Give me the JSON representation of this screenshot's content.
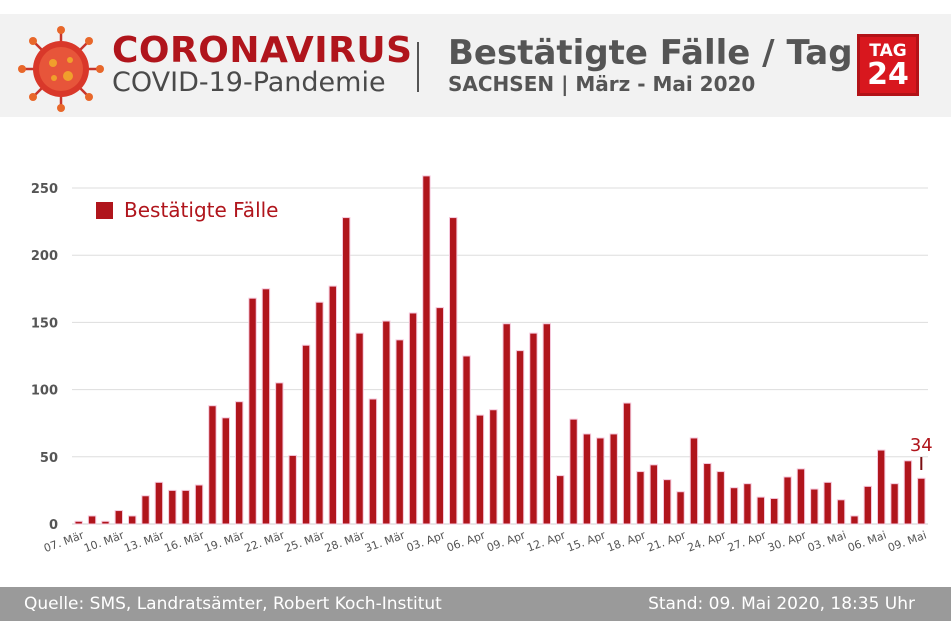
{
  "header": {
    "title_main": "CORONAVIRUS",
    "title_sub": "COVID-19-Pandemie",
    "chart_title": "Bestätigte Fälle / Tag",
    "chart_subtitle": "SACHSEN | März - Mai 2020",
    "logo_top": "TAG",
    "logo_bottom": "24"
  },
  "footer": {
    "source": "Quelle: SMS, Landratsämter, Robert Koch-Institut",
    "stand": "Stand: 09. Mai 2020, 18:35 Uhr"
  },
  "colors": {
    "bar": "#b0151c",
    "bar_dark": "#7a0e12",
    "title_red": "#b0151c",
    "grid": "#dddddd",
    "footer_bg": "#9a9a9a"
  },
  "chart_data": {
    "type": "bar",
    "title": "Bestätigte Fälle / Tag",
    "subtitle": "SACHSEN | März - Mai 2020",
    "legend": "Bestätigte Fälle",
    "legend_position": "top-left",
    "grid": true,
    "ylim": [
      0,
      275
    ],
    "y_ticks": [
      0,
      50,
      100,
      150,
      200,
      250
    ],
    "x_tick_labels": [
      "07. Mär",
      "10. Mär",
      "13. Mär",
      "16. Mär",
      "19. Mär",
      "22. Mär",
      "25. Mär",
      "28. Mär",
      "31. Mär",
      "03. Apr",
      "06. Apr",
      "09. Apr",
      "12. Apr",
      "15. Apr",
      "18. Apr",
      "21. Apr",
      "24. Apr",
      "27. Apr",
      "30. Apr",
      "03. Mai",
      "06. Mai",
      "09. Mai"
    ],
    "x_tick_every": 3,
    "values": [
      2,
      6,
      2,
      10,
      6,
      21,
      31,
      25,
      25,
      29,
      88,
      79,
      91,
      168,
      175,
      105,
      51,
      133,
      165,
      177,
      228,
      142,
      93,
      151,
      137,
      157,
      259,
      161,
      228,
      125,
      81,
      85,
      149,
      129,
      142,
      149,
      36,
      78,
      67,
      64,
      67,
      90,
      39,
      44,
      33,
      24,
      64,
      45,
      39,
      27,
      30,
      20,
      19,
      35,
      41,
      26,
      31,
      18,
      6,
      28,
      55,
      30,
      47,
      34
    ],
    "last_value_label": "34"
  }
}
